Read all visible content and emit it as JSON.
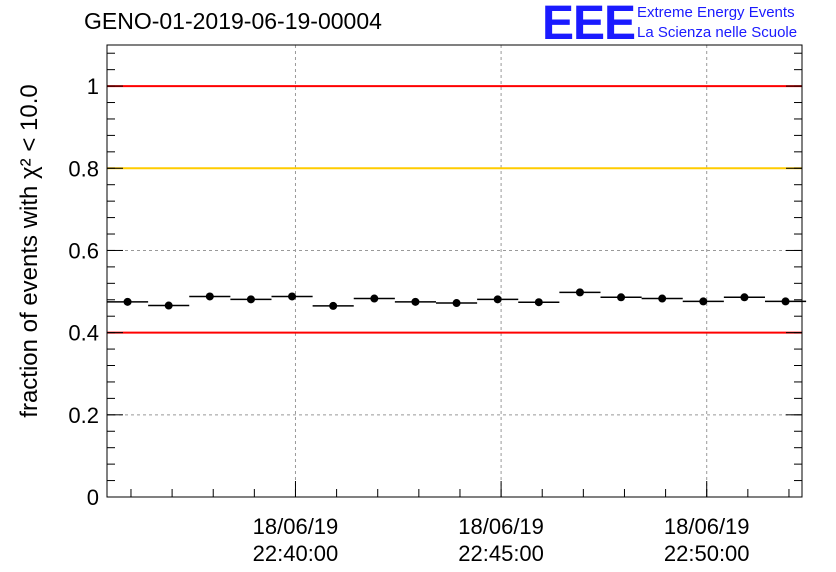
{
  "header": {
    "run_title": "GENO-01-2019-06-19-00004",
    "logo_letters": "EEE",
    "logo_line1": "Extreme Energy Events",
    "logo_line2": "La Scienza nelle Scuole"
  },
  "colors": {
    "red_line": "#ff0000",
    "yellow_line": "#ffcc00",
    "points": "#000000",
    "logo": "#1a1aff"
  },
  "chart_data": {
    "type": "scatter",
    "title": "GENO-01-2019-06-19-00004",
    "ylabel": "fraction of events with χ² < 10.0",
    "ylim": [
      0,
      1.1
    ],
    "xlim_minutes": [
      0,
      16.9
    ],
    "y_ticks": [
      0,
      0.2,
      0.4,
      0.6,
      0.8,
      1.0
    ],
    "y_tick_labels": [
      "0",
      "0.2",
      "0.4",
      "0.6",
      "0.8",
      "1"
    ],
    "x_major_ticks": [
      {
        "minute": 4.583,
        "date": "18/06/19",
        "time": "22:40:00"
      },
      {
        "minute": 9.583,
        "date": "18/06/19",
        "time": "22:45:00"
      },
      {
        "minute": 14.583,
        "date": "18/06/19",
        "time": "22:50:00"
      }
    ],
    "bin_width_minutes": 1.0,
    "points_minute": [
      0.5,
      1.5,
      2.5,
      3.5,
      4.5,
      5.5,
      6.5,
      7.5,
      8.5,
      9.5,
      10.5,
      11.5,
      12.5,
      13.5,
      14.5,
      15.5,
      16.5
    ],
    "values": [
      0.475,
      0.466,
      0.488,
      0.481,
      0.488,
      0.465,
      0.483,
      0.475,
      0.472,
      0.481,
      0.474,
      0.498,
      0.486,
      0.483,
      0.476,
      0.486,
      0.476
    ],
    "reference_lines": [
      {
        "y": 1.0,
        "color": "#ff0000"
      },
      {
        "y": 0.8,
        "color": "#ffcc00"
      },
      {
        "y": 0.4,
        "color": "#ff0000"
      }
    ],
    "grid": true
  }
}
